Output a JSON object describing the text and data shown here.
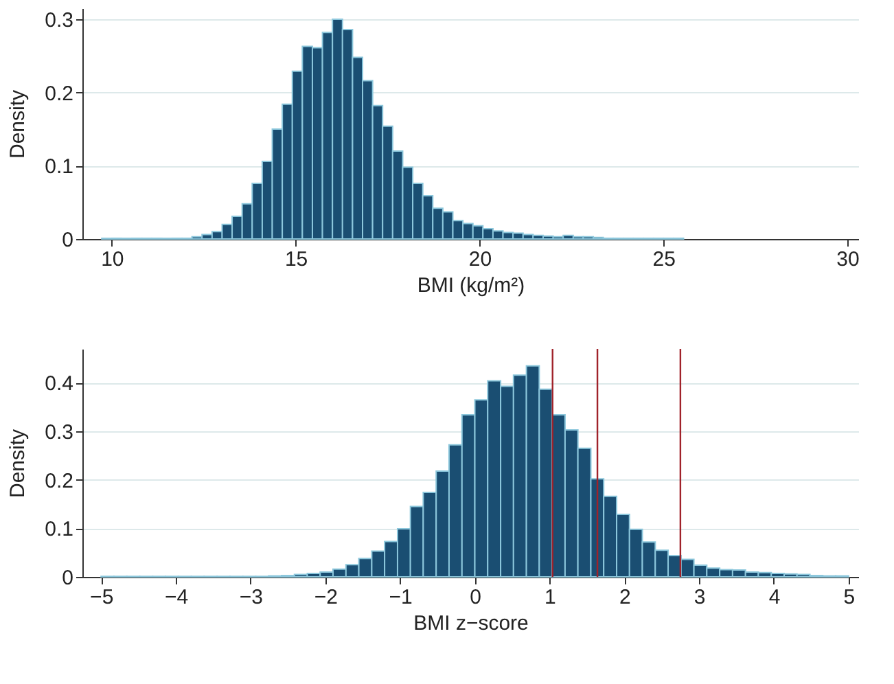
{
  "chart_data": [
    {
      "type": "histogram",
      "xlabel": "BMI (kg/m²)",
      "ylabel": "Density",
      "color": "#1a4e72",
      "grid": "y",
      "bins": [
        9.726,
        9.999,
        10.272,
        10.544,
        10.817,
        11.09,
        11.363,
        11.636,
        11.908,
        12.181,
        12.454,
        12.727,
        13.0,
        13.272,
        13.545,
        13.818,
        14.091,
        14.364,
        14.636,
        14.909,
        15.182,
        15.455,
        15.728,
        16.0,
        16.273,
        16.546,
        16.819,
        17.092,
        17.364,
        17.637,
        17.91,
        18.183,
        18.456,
        18.728,
        19.001,
        19.274,
        19.547,
        19.82,
        20.092,
        20.365,
        20.638,
        20.911,
        21.184,
        21.456,
        21.729,
        22.002,
        22.275,
        22.548,
        22.82,
        23.093,
        23.366,
        23.639,
        23.912,
        24.184,
        24.457,
        24.73,
        25.003,
        25.276,
        25.548
      ],
      "values": [
        0.001,
        0.001,
        0.001,
        0.001,
        0.001,
        0.001,
        0.001,
        0.001,
        0.001,
        0.003,
        0.006,
        0.01,
        0.02,
        0.031,
        0.048,
        0.076,
        0.106,
        0.15,
        0.184,
        0.229,
        0.263,
        0.261,
        0.282,
        0.3,
        0.286,
        0.248,
        0.216,
        0.182,
        0.154,
        0.12,
        0.098,
        0.076,
        0.059,
        0.042,
        0.037,
        0.025,
        0.021,
        0.018,
        0.014,
        0.011,
        0.009,
        0.008,
        0.006,
        0.005,
        0.004,
        0.003,
        0.005,
        0.003,
        0.003,
        0.002,
        0.001,
        0.001,
        0.001,
        0.001,
        0.001,
        0.001,
        0.001,
        0.001
      ],
      "xlim": [
        9.2,
        30.3
      ],
      "xticks": [
        10,
        15,
        20,
        25,
        30
      ],
      "ylim": [
        0,
        0.315
      ],
      "yticks": [
        0,
        0.1,
        0.2,
        0.3
      ]
    },
    {
      "type": "histogram",
      "xlabel": "BMI z−score",
      "ylabel": "Density",
      "color": "#1a4e72",
      "grid": "y",
      "bins": [
        -5,
        -4.828,
        -4.655,
        -4.483,
        -4.31,
        -4.138,
        -3.966,
        -3.793,
        -3.621,
        -3.448,
        -3.276,
        -3.103,
        -2.931,
        -2.759,
        -2.586,
        -2.414,
        -2.241,
        -2.069,
        -1.897,
        -1.724,
        -1.552,
        -1.379,
        -1.207,
        -1.034,
        -0.862,
        -0.69,
        -0.517,
        -0.345,
        -0.172,
        0,
        0.172,
        0.345,
        0.517,
        0.69,
        0.862,
        1.034,
        1.207,
        1.379,
        1.552,
        1.724,
        1.897,
        2.069,
        2.241,
        2.414,
        2.586,
        2.759,
        2.931,
        3.103,
        3.276,
        3.448,
        3.621,
        3.793,
        3.966,
        4.138,
        4.31,
        4.483,
        4.655,
        4.828,
        5
      ],
      "values": [
        0.001,
        0.001,
        0.001,
        0.001,
        0.001,
        0.001,
        0.001,
        0.001,
        0.001,
        0.001,
        0.001,
        0.001,
        0.001,
        0.002,
        0.003,
        0.005,
        0.007,
        0.01,
        0.016,
        0.025,
        0.038,
        0.053,
        0.073,
        0.099,
        0.145,
        0.174,
        0.218,
        0.272,
        0.334,
        0.365,
        0.404,
        0.393,
        0.416,
        0.435,
        0.387,
        0.334,
        0.303,
        0.265,
        0.202,
        0.166,
        0.129,
        0.098,
        0.072,
        0.055,
        0.044,
        0.036,
        0.024,
        0.018,
        0.015,
        0.014,
        0.01,
        0.009,
        0.007,
        0.006,
        0.005,
        0.003,
        0.002,
        0.002
      ],
      "xlim": [
        -5.25,
        5.13
      ],
      "xticks": [
        -5,
        -4,
        -3,
        -2,
        -1,
        0,
        1,
        2,
        3,
        4,
        5
      ],
      "ylim": [
        0,
        0.47
      ],
      "yticks": [
        0,
        0.1,
        0.2,
        0.3,
        0.4
      ],
      "ref_lines": [
        {
          "axis": "x",
          "value": 1.04,
          "color": "#a0222a"
        },
        {
          "axis": "x",
          "value": 1.64,
          "color": "#a0222a"
        },
        {
          "axis": "x",
          "value": 2.75,
          "color": "#a0222a"
        }
      ]
    }
  ]
}
